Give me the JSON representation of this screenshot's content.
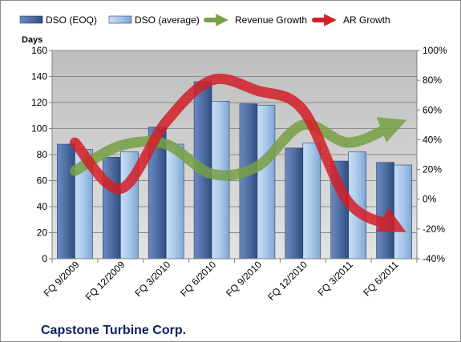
{
  "chart_data": {
    "type": "bar",
    "title": "Capstone Turbine Corp.",
    "ylabel": "Days",
    "ylim": [
      0,
      160
    ],
    "y_ticks": [
      0,
      20,
      40,
      60,
      80,
      100,
      120,
      140,
      160
    ],
    "y2lim": [
      -40,
      100
    ],
    "y2_ticks": [
      "-40%",
      "-20%",
      "0%",
      "20%",
      "40%",
      "60%",
      "80%",
      "100%"
    ],
    "grid": true,
    "legend_position": "top",
    "categories": [
      "FQ 9/2009",
      "FQ 12/2009",
      "FQ 3/2010",
      "FQ 6/2010",
      "FQ 9/2010",
      "FQ 12/2010",
      "FQ 3/2011",
      "FQ 6/2011"
    ],
    "series": [
      {
        "name": "DSO (EOQ)",
        "type": "bar",
        "axis": "left",
        "color": "#4f6fa3",
        "values": [
          88,
          78,
          101,
          136,
          119,
          85,
          75,
          74
        ]
      },
      {
        "name": "DSO (average)",
        "type": "bar",
        "axis": "left",
        "color": "#a9c8ea",
        "values": [
          84,
          82,
          88,
          121,
          118,
          89,
          82,
          72
        ]
      },
      {
        "name": "Revenue Growth",
        "type": "line-arrow",
        "axis": "right",
        "color": "#77a044",
        "values": [
          19,
          36,
          37,
          17,
          22,
          50,
          38,
          50
        ]
      },
      {
        "name": "AR Growth",
        "type": "line-arrow",
        "axis": "right",
        "color": "#d41f27",
        "values": [
          38,
          7,
          52,
          80,
          73,
          60,
          -2,
          -18
        ]
      }
    ]
  }
}
